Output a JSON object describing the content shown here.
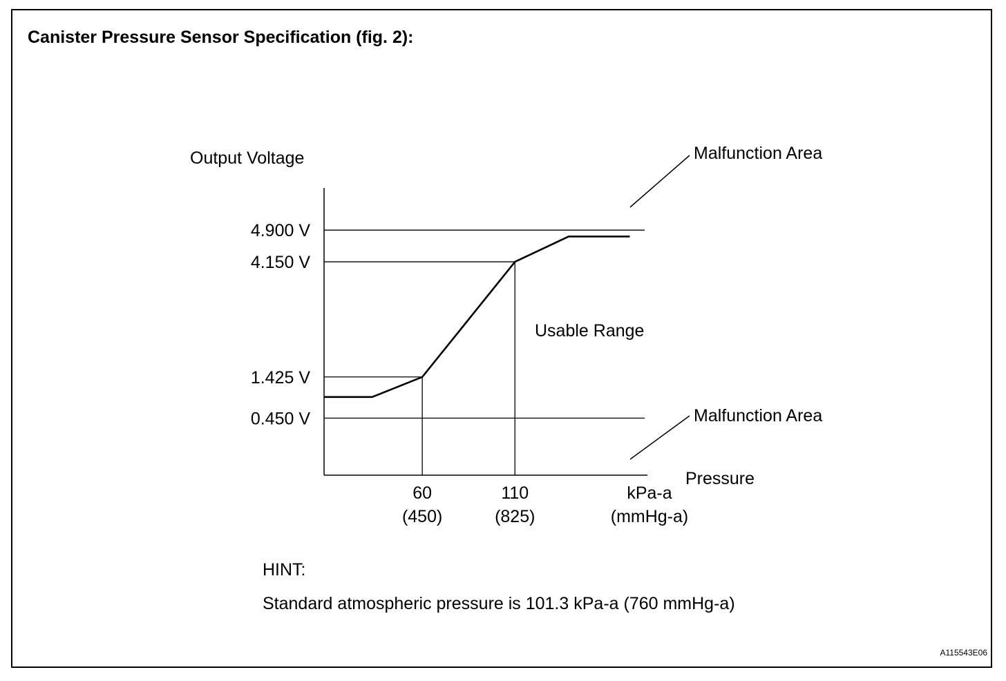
{
  "header": {
    "title": "Canister Pressure Sensor Specification (fig. 2):"
  },
  "chart_data": {
    "type": "line",
    "xlabel": "Pressure",
    "ylabel": "Output Voltage",
    "x_unit": "kPa-a",
    "x_unit_alt": "(mmHg-a)",
    "x_ticks": [
      {
        "value": 60,
        "label": "60",
        "sublabel": "(450)"
      },
      {
        "value": 110,
        "label": "110",
        "sublabel": "(825)"
      }
    ],
    "y_ticks": [
      {
        "value": 0.45,
        "label": "0.450 V"
      },
      {
        "value": 1.425,
        "label": "1.425 V"
      },
      {
        "value": 4.15,
        "label": "4.150 V"
      },
      {
        "value": 4.9,
        "label": "4.900 V"
      }
    ],
    "xlim": [
      7,
      180
    ],
    "ylim": [
      -0.9,
      5.9
    ],
    "series": [
      {
        "x": [
          7,
          33,
          60,
          110,
          139,
          172
        ],
        "y": [
          0.95,
          0.95,
          1.425,
          4.15,
          4.75,
          4.75
        ]
      }
    ],
    "reference_lines": [
      {
        "axis": "y",
        "value": 4.9,
        "extent": "full"
      },
      {
        "axis": "y",
        "value": 4.15,
        "extent": "to-curve"
      },
      {
        "axis": "y",
        "value": 1.425,
        "extent": "to-curve"
      },
      {
        "axis": "y",
        "value": 0.45,
        "extent": "full"
      },
      {
        "axis": "x",
        "value": 60,
        "extent": "to-curve"
      },
      {
        "axis": "x",
        "value": 110,
        "extent": "to-curve"
      }
    ],
    "annotations": [
      {
        "text": "Malfunction Area",
        "region": "above-4.900 V"
      },
      {
        "text": "Usable Range",
        "region": "between"
      },
      {
        "text": "Malfunction Area",
        "region": "below-0.450 V"
      }
    ]
  },
  "hint": {
    "label": "HINT:",
    "text": "Standard atmospheric pressure is 101.3 kPa-a (760 mmHg-a)"
  },
  "figure_code": "A115543E06"
}
